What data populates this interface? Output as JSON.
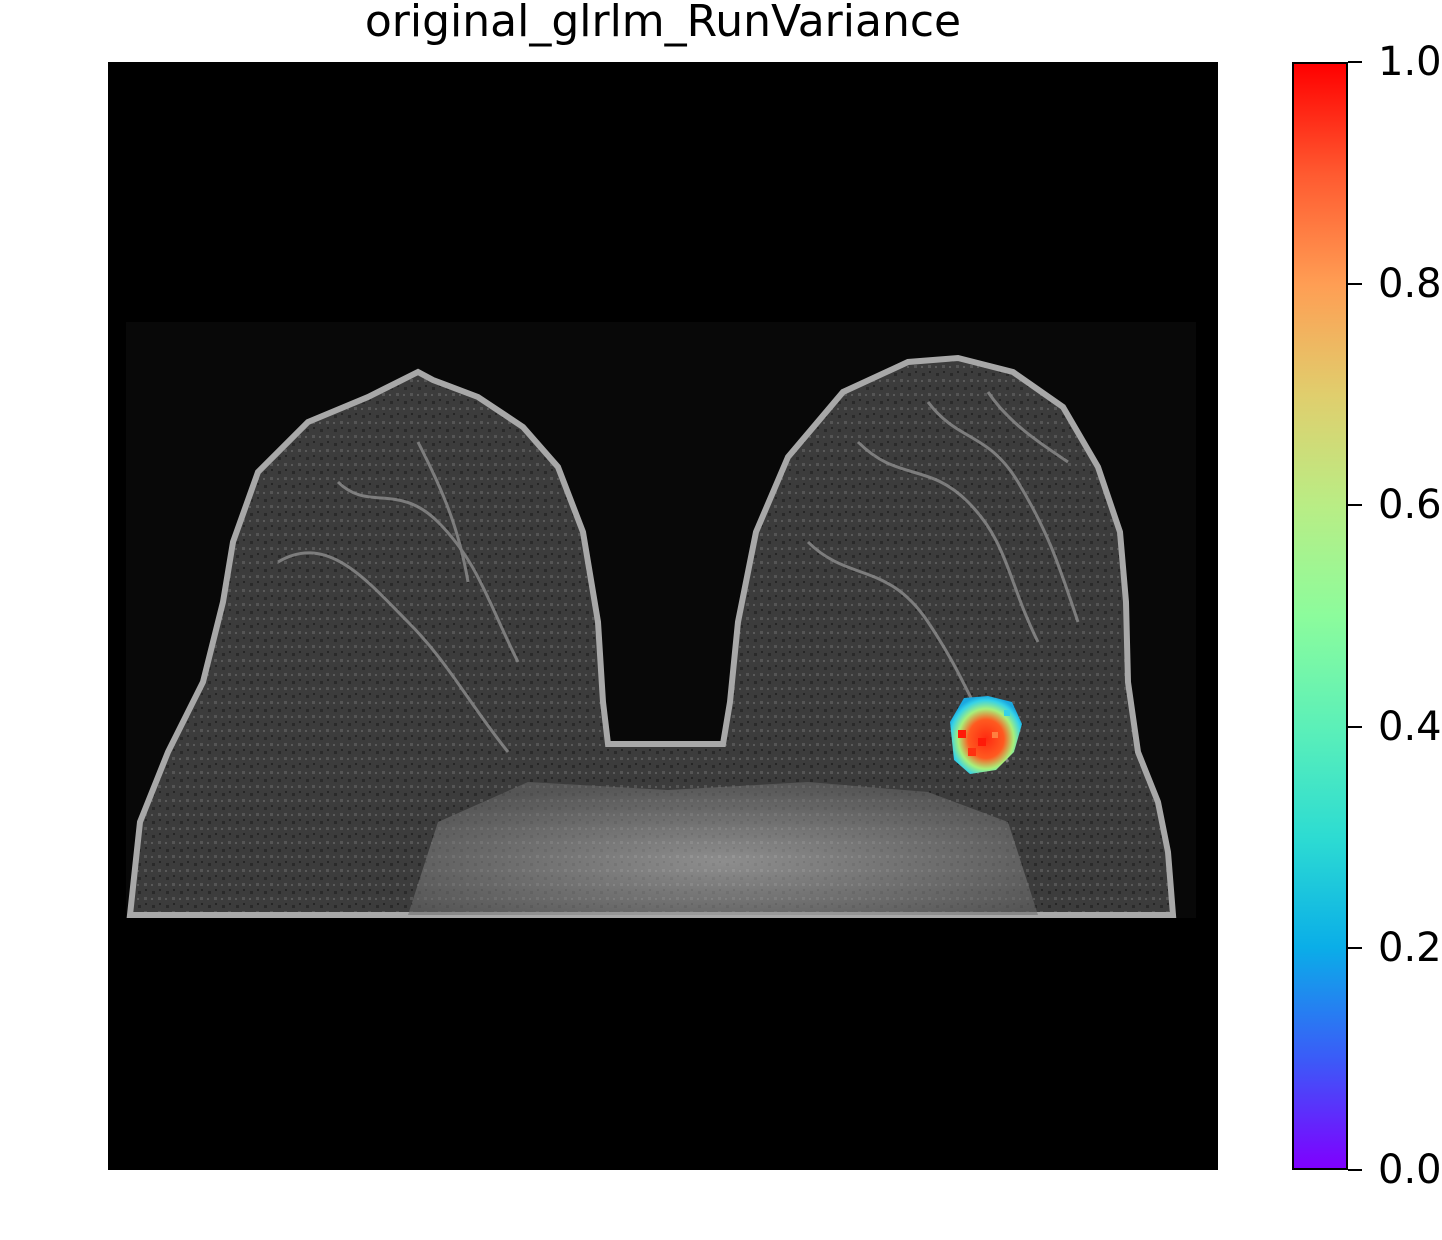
{
  "figure": {
    "title": "original_glrlm_RunVariance"
  },
  "colorbar": {
    "colormap": "rainbow",
    "range": [
      0.0,
      1.0
    ],
    "tick_labels": [
      "0.0",
      "0.2",
      "0.4",
      "0.6",
      "0.8",
      "1.0"
    ],
    "tick_values": [
      0.0,
      0.2,
      0.4,
      0.6,
      0.8,
      1.0
    ],
    "stops": [
      "#7f00ff",
      "#3a5cf8",
      "#0aaee8",
      "#2ddcd2",
      "#5cf0b8",
      "#8cfc9c",
      "#b9ed85",
      "#e0ce6d",
      "#ff9e54",
      "#ff5a30",
      "#ff0000"
    ]
  },
  "image": {
    "description_colors": {
      "background": "#000000",
      "tissue": "#4a4a4a",
      "skin": "#b0b0b0",
      "overlay_low": "#35d2e8",
      "overlay_mid": "#8cf58a",
      "overlay_high": "#ff2a10"
    }
  }
}
